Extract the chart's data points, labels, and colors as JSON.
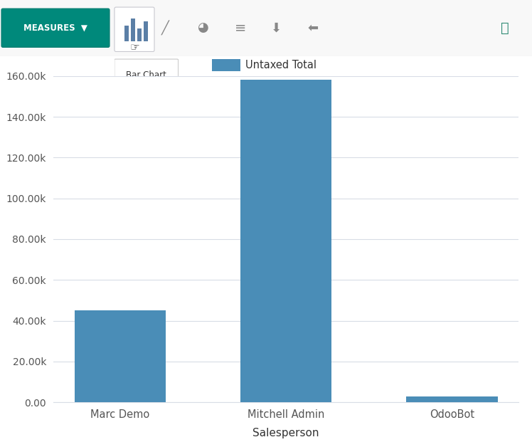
{
  "categories": [
    "Marc Demo",
    "Mitchell Admin",
    "OdooBot"
  ],
  "values": [
    45000,
    158000,
    3000
  ],
  "bar_color": "#4a8db7",
  "xlabel": "Salesperson",
  "ylim": [
    0,
    160000
  ],
  "yticks": [
    0,
    20000,
    40000,
    60000,
    80000,
    100000,
    120000,
    140000,
    160000
  ],
  "ytick_labels": [
    "0.00",
    "20.00k",
    "40.00k",
    "60.00k",
    "80.00k",
    "100.00k",
    "120.00k",
    "140.00k",
    "160.00k"
  ],
  "legend_label": "Untaxed Total",
  "legend_color": "#4a8db7",
  "background_color": "#ffffff",
  "grid_color": "#d8dde6",
  "toolbar_bg": "#f8f8f8",
  "toolbar_border": "#e0e0e0",
  "measures_btn_color": "#00897b",
  "measures_btn_border": "#007a6e",
  "tick_fontsize": 10,
  "axis_fontsize": 11,
  "legend_fontsize": 10.5
}
